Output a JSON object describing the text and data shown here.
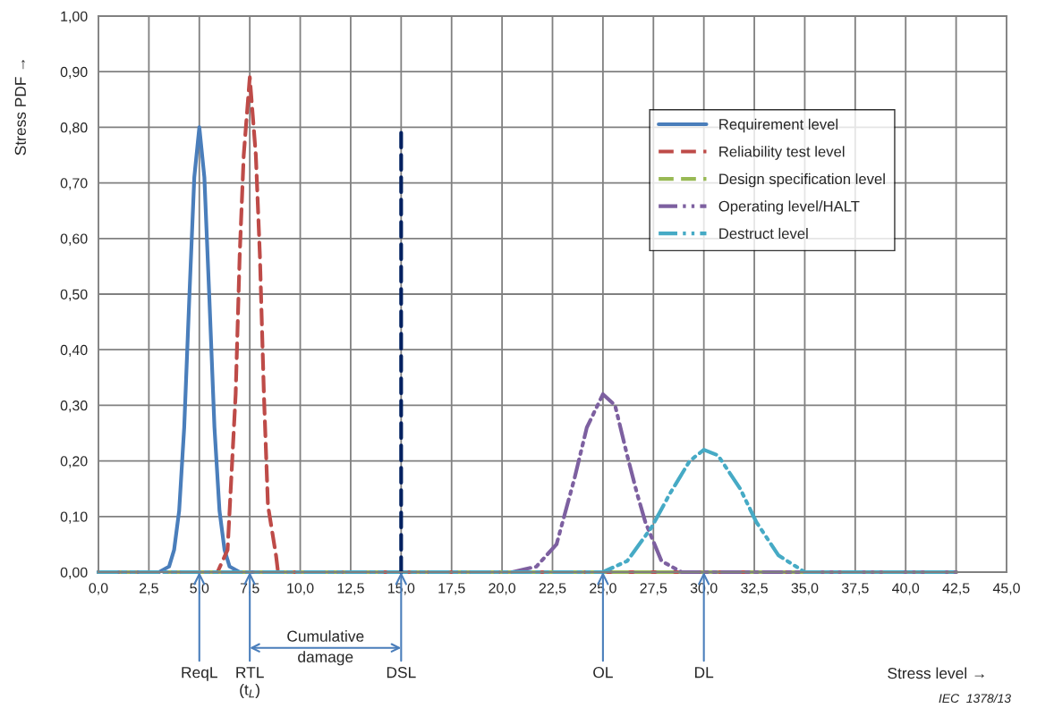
{
  "chart_data": {
    "type": "line",
    "ylabel": "Stress PDF →",
    "xlim": [
      0,
      45
    ],
    "ylim": [
      0,
      1
    ],
    "xticks": [
      {
        "value": 0,
        "label": "0,0"
      },
      {
        "value": 2.5,
        "label": "2,5"
      },
      {
        "value": 5,
        "label": "5,0"
      },
      {
        "value": 7.5,
        "label": "7,5"
      },
      {
        "value": 10,
        "label": "10,0"
      },
      {
        "value": 12.5,
        "label": "12,5"
      },
      {
        "value": 15,
        "label": "15,0"
      },
      {
        "value": 17.5,
        "label": "17,5"
      },
      {
        "value": 20,
        "label": "20,0"
      },
      {
        "value": 22.5,
        "label": "22,5"
      },
      {
        "value": 25,
        "label": "25,0"
      },
      {
        "value": 27.5,
        "label": "27,5"
      },
      {
        "value": 30,
        "label": "30,0"
      },
      {
        "value": 32.5,
        "label": "32,5"
      },
      {
        "value": 35,
        "label": "35,0"
      },
      {
        "value": 37.5,
        "label": "37,5"
      },
      {
        "value": 40,
        "label": "40,0"
      },
      {
        "value": 42.5,
        "label": "42,5"
      },
      {
        "value": 45,
        "label": "45,0"
      }
    ],
    "yticks": [
      {
        "value": 0,
        "label": "0,00"
      },
      {
        "value": 0.1,
        "label": "0,10"
      },
      {
        "value": 0.2,
        "label": "0,20"
      },
      {
        "value": 0.3,
        "label": "0,30"
      },
      {
        "value": 0.4,
        "label": "0,40"
      },
      {
        "value": 0.5,
        "label": "0,50"
      },
      {
        "value": 0.6,
        "label": "0,60"
      },
      {
        "value": 0.7,
        "label": "0,70"
      },
      {
        "value": 0.8,
        "label": "0,80"
      },
      {
        "value": 0.9,
        "label": "0,90"
      },
      {
        "value": 1,
        "label": "1,00"
      }
    ],
    "grid": true,
    "legend": "top right",
    "series": [
      {
        "name": "Requirement level",
        "color": "#4a7ebb",
        "line_style": "solid",
        "x": [
          0,
          3,
          3.5,
          3.75,
          4,
          4.25,
          4.5,
          4.75,
          5,
          5.25,
          5.5,
          5.75,
          6,
          6.25,
          6.5,
          7,
          42.5
        ],
        "values": [
          0,
          0,
          0.01,
          0.04,
          0.11,
          0.26,
          0.49,
          0.71,
          0.8,
          0.71,
          0.49,
          0.26,
          0.11,
          0.04,
          0.01,
          0,
          0
        ]
      },
      {
        "name": "Reliability test level",
        "color": "#be4b48",
        "line_style": "dashed",
        "x": [
          0,
          5.9,
          6.4,
          6.8,
          7.0,
          7.2,
          7.5,
          7.8,
          8.0,
          8.2,
          8.4,
          8.8,
          8.9,
          42.5
        ],
        "values": [
          0,
          0,
          0.04,
          0.32,
          0.57,
          0.75,
          0.89,
          0.75,
          0.57,
          0.32,
          0.12,
          0.03,
          0,
          0
        ]
      },
      {
        "name": "Design specification level",
        "color": "#98b954",
        "line_style": "dashed",
        "x": [
          0,
          42.5
        ],
        "values": [
          0,
          0
        ]
      },
      {
        "name": "Operating level/HALT",
        "color": "#7d60a0",
        "line_style": "dashdot",
        "x": [
          0,
          20.5,
          21.7,
          22.7,
          23.6,
          24.2,
          25,
          25.6,
          26.2,
          26.7,
          27.1,
          27.9,
          28.9,
          42.5
        ],
        "values": [
          0,
          0,
          0.01,
          0.05,
          0.17,
          0.26,
          0.32,
          0.3,
          0.21,
          0.14,
          0.09,
          0.02,
          0,
          0
        ]
      },
      {
        "name": "Destruct level",
        "color": "#46aac5",
        "line_style": "dashdot",
        "x": [
          0,
          25,
          26.2,
          27.4,
          28.3,
          29.3,
          30,
          30.7,
          31.8,
          32.6,
          33.7,
          35,
          42.5
        ],
        "values": [
          0,
          0,
          0.02,
          0.08,
          0.14,
          0.2,
          0.22,
          0.21,
          0.15,
          0.09,
          0.03,
          0,
          0
        ]
      },
      {
        "color": "#002060",
        "line_style": "dashed",
        "x": [
          15,
          15
        ],
        "values": [
          0,
          0.79
        ]
      }
    ],
    "annotations": [
      {
        "text": "ReqL",
        "x": 5,
        "y": 0
      },
      {
        "text": "RTL\n(t$_{L}$)",
        "x": 7.5,
        "y": 0
      },
      "Cumulative\ndamage",
      {
        "text": "DSL",
        "x": 15,
        "y": 0
      },
      {
        "text": "OL",
        "x": 25,
        "y": 0
      },
      {
        "text": "DL",
        "x": 30,
        "y": 0
      },
      "Stress level →",
      "IEC  1378/13"
    ]
  }
}
